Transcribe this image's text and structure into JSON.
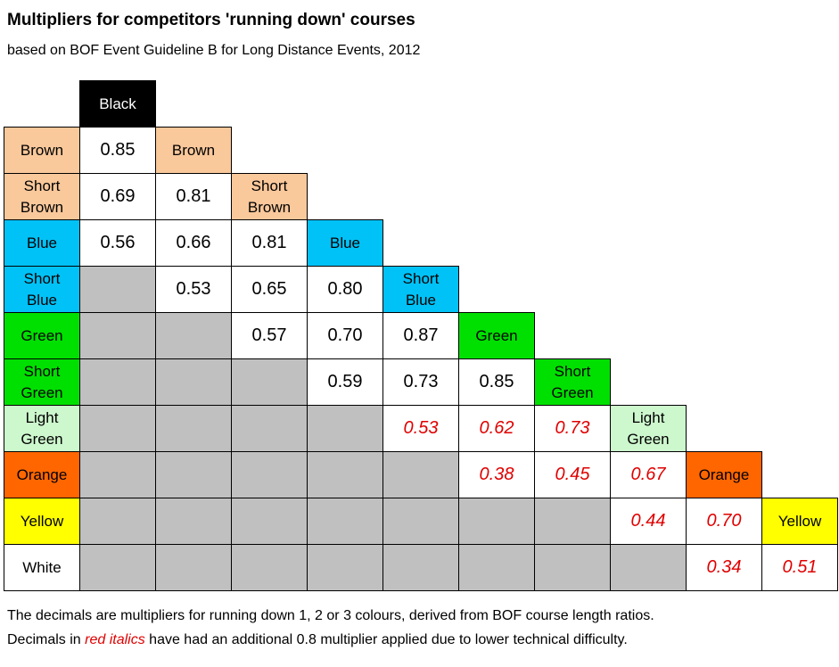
{
  "title": "Multipliers for competitors 'running down' courses",
  "subtitle": "based on BOF Event Guideline B for Long Distance Events, 2012",
  "colors": {
    "black": "#000000",
    "brown": "#f9c89b",
    "blue": "#00c2f7",
    "green": "#00e000",
    "light_green": "#cdf7cd",
    "orange": "#ff6600",
    "yellow": "#ffff00",
    "white": "#ffffff",
    "grey": "#c0c0c0",
    "red_text": "#e00000"
  },
  "column_headers": [
    {
      "label": "Black",
      "color": "black"
    },
    {
      "label": "Brown",
      "color": "brown"
    },
    {
      "label": "Short\nBrown",
      "color": "brown"
    },
    {
      "label": "Blue",
      "color": "blue"
    },
    {
      "label": "Short\nBlue",
      "color": "blue"
    },
    {
      "label": "Green",
      "color": "green"
    },
    {
      "label": "Short\nGreen",
      "color": "green"
    },
    {
      "label": "Light\nGreen",
      "color": "light_green"
    },
    {
      "label": "Orange",
      "color": "orange"
    },
    {
      "label": "Yellow",
      "color": "yellow"
    }
  ],
  "rows": [
    {
      "label": "Brown",
      "color": "brown",
      "cells": [
        {
          "v": "0.85"
        }
      ]
    },
    {
      "label": "Short\nBrown",
      "color": "brown",
      "cells": [
        {
          "v": "0.69"
        },
        {
          "v": "0.81"
        }
      ]
    },
    {
      "label": "Blue",
      "color": "blue",
      "cells": [
        {
          "v": "0.56"
        },
        {
          "v": "0.66"
        },
        {
          "v": "0.81"
        }
      ]
    },
    {
      "label": "Short\nBlue",
      "color": "blue",
      "cells": [
        {
          "v": ""
        },
        {
          "v": "0.53"
        },
        {
          "v": "0.65"
        },
        {
          "v": "0.80"
        }
      ]
    },
    {
      "label": "Green",
      "color": "green",
      "cells": [
        {
          "v": ""
        },
        {
          "v": ""
        },
        {
          "v": "0.57"
        },
        {
          "v": "0.70"
        },
        {
          "v": "0.87"
        }
      ]
    },
    {
      "label": "Short\nGreen",
      "color": "green",
      "cells": [
        {
          "v": ""
        },
        {
          "v": ""
        },
        {
          "v": ""
        },
        {
          "v": "0.59"
        },
        {
          "v": "0.73"
        },
        {
          "v": "0.85"
        }
      ]
    },
    {
      "label": "Light\nGreen",
      "color": "light_green",
      "cells": [
        {
          "v": ""
        },
        {
          "v": ""
        },
        {
          "v": ""
        },
        {
          "v": ""
        },
        {
          "v": "0.53",
          "red": true
        },
        {
          "v": "0.62",
          "red": true
        },
        {
          "v": "0.73",
          "red": true
        }
      ]
    },
    {
      "label": "Orange",
      "color": "orange",
      "cells": [
        {
          "v": ""
        },
        {
          "v": ""
        },
        {
          "v": ""
        },
        {
          "v": ""
        },
        {
          "v": ""
        },
        {
          "v": "0.38",
          "red": true
        },
        {
          "v": "0.45",
          "red": true
        },
        {
          "v": "0.67",
          "red": true
        }
      ]
    },
    {
      "label": "Yellow",
      "color": "yellow",
      "cells": [
        {
          "v": ""
        },
        {
          "v": ""
        },
        {
          "v": ""
        },
        {
          "v": ""
        },
        {
          "v": ""
        },
        {
          "v": ""
        },
        {
          "v": ""
        },
        {
          "v": "0.44",
          "red": true
        },
        {
          "v": "0.70",
          "red": true
        }
      ]
    },
    {
      "label": "White",
      "color": "white",
      "cells": [
        {
          "v": ""
        },
        {
          "v": ""
        },
        {
          "v": ""
        },
        {
          "v": ""
        },
        {
          "v": ""
        },
        {
          "v": ""
        },
        {
          "v": ""
        },
        {
          "v": ""
        },
        {
          "v": "0.34",
          "red": true
        },
        {
          "v": "0.51",
          "red": true
        }
      ]
    }
  ],
  "footnote": {
    "line1": "The decimals are multipliers for running down 1, 2 or 3 colours, derived from BOF course length ratios.",
    "line2_pre": "Decimals in ",
    "line2_red": "red italics",
    "line2_post": " have had an additional 0.8 multiplier applied due to lower technical difficulty."
  }
}
